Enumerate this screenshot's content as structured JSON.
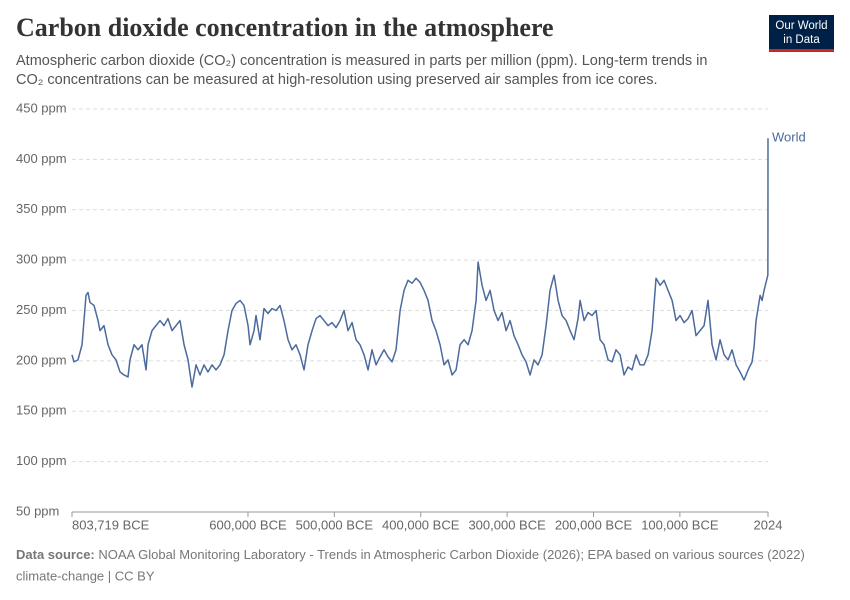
{
  "logo": [
    "Our World",
    "in Data"
  ],
  "chart_data": {
    "type": "line",
    "title": "Carbon dioxide concentration in the atmosphere",
    "subtitle": [
      "Atmospheric carbon dioxide (CO₂) concentration is measured in parts per million (ppm). Long-term trends in",
      "CO₂ concentrations can be measured at high-resolution using preserved air samples from ice cores."
    ],
    "source_label": "Data source:",
    "source": "NOAA Global Monitoring Laboratory - Trends in Atmospheric Carbon Dioxide (2026); EPA based on various sources (2022)",
    "footer": "climate-change | CC BY",
    "grid": true,
    "xlim": [
      -803719,
      2024
    ],
    "ylim": [
      50,
      450
    ],
    "xticks": [
      {
        "value": -803719,
        "label": "803,719 BCE"
      },
      {
        "value": -600000,
        "label": "600,000 BCE"
      },
      {
        "value": -500000,
        "label": "500,000 BCE"
      },
      {
        "value": -400000,
        "label": "400,000 BCE"
      },
      {
        "value": -300000,
        "label": "300,000 BCE"
      },
      {
        "value": -200000,
        "label": "200,000 BCE"
      },
      {
        "value": -100000,
        "label": "100,000 BCE"
      },
      2024
    ],
    "yticks": [
      {
        "value": 50,
        "label": "50 ppm"
      },
      {
        "value": 100,
        "label": "100 ppm"
      },
      {
        "value": 150,
        "label": "150 ppm"
      },
      {
        "value": 200,
        "label": "200 ppm"
      },
      {
        "value": 250,
        "label": "250 ppm"
      },
      {
        "value": 300,
        "label": "300 ppm"
      },
      {
        "value": 350,
        "label": "350 ppm"
      },
      {
        "value": 400,
        "label": "400 ppm"
      },
      {
        "value": 450,
        "label": "450 ppm"
      }
    ],
    "x": [
      -803719,
      -801400,
      -796800,
      -792100,
      -787500,
      -785200,
      -782900,
      -778200,
      -773600,
      -771300,
      -766700,
      -762000,
      -757400,
      -752800,
      -748100,
      -743500,
      -738900,
      -736600,
      -731900,
      -727300,
      -722700,
      -718000,
      -715700,
      -711100,
      -706500,
      -701800,
      -697200,
      -692600,
      -687900,
      -683300,
      -678700,
      -674000,
      -669400,
      -664800,
      -660100,
      -655500,
      -650900,
      -646300,
      -641600,
      -637000,
      -632400,
      -627700,
      -623100,
      -618500,
      -613800,
      -609200,
      -604600,
      -599900,
      -597600,
      -593000,
      -590700,
      -586100,
      -581400,
      -576800,
      -572200,
      -567500,
      -562900,
      -558300,
      -553600,
      -549000,
      -544400,
      -539700,
      -535100,
      -530500,
      -525800,
      -521200,
      -516600,
      -511900,
      -507300,
      -502700,
      -498100,
      -493400,
      -488800,
      -484200,
      -479500,
      -474900,
      -470300,
      -465600,
      -461000,
      -456400,
      -451700,
      -447100,
      -442500,
      -437800,
      -433200,
      -428600,
      -423900,
      -419300,
      -414700,
      -410100,
      -405400,
      -400800,
      -396200,
      -391500,
      -386900,
      -382300,
      -377600,
      -373000,
      -368400,
      -363700,
      -359100,
      -354500,
      -349800,
      -345200,
      -340600,
      -335900,
      -333600,
      -329000,
      -324400,
      -319700,
      -315100,
      -310500,
      -305900,
      -301200,
      -296600,
      -292000,
      -287300,
      -282700,
      -278100,
      -273400,
      -268800,
      -264200,
      -259500,
      -254900,
      -250300,
      -245600,
      -241000,
      -236400,
      -231700,
      -227100,
      -222500,
      -217900,
      -215500,
      -210900,
      -206300,
      -201700,
      -197000,
      -192400,
      -187800,
      -183100,
      -178500,
      -173900,
      -169200,
      -164600,
      -160000,
      -155400,
      -150700,
      -146100,
      -141500,
      -136800,
      -132200,
      -127600,
      -122900,
      -118300,
      -113700,
      -109000,
      -104400,
      -99800,
      -95100,
      -90500,
      -85900,
      -81300,
      -76600,
      -72000,
      -67400,
      -62700,
      -58100,
      -53500,
      -48800,
      -44200,
      -39600,
      -34900,
      -30300,
      -25700,
      -21000,
      -16400,
      -14100,
      -11800,
      -7100,
      -4800,
      -2500,
      -200,
      1850,
      1960,
      2024
    ],
    "series": [
      {
        "name": "World",
        "color": "#4c6a9c",
        "values": [
          206,
          199,
          201,
          216,
          265,
          268,
          258,
          255,
          240,
          230,
          235,
          216,
          206,
          201,
          189,
          186,
          184,
          201,
          216,
          211,
          216,
          191,
          216,
          230,
          235,
          240,
          235,
          242,
          230,
          235,
          240,
          216,
          201,
          174,
          196,
          186,
          196,
          189,
          196,
          191,
          196,
          206,
          230,
          250,
          257,
          260,
          255,
          235,
          216,
          230,
          245,
          221,
          252,
          247,
          252,
          250,
          255,
          240,
          221,
          211,
          216,
          206,
          191,
          216,
          230,
          242,
          245,
          240,
          235,
          238,
          233,
          240,
          250,
          230,
          238,
          221,
          216,
          206,
          191,
          211,
          196,
          204,
          211,
          204,
          199,
          211,
          250,
          270,
          280,
          277,
          282,
          278,
          270,
          260,
          240,
          230,
          216,
          196,
          201,
          186,
          191,
          216,
          221,
          216,
          230,
          260,
          298,
          275,
          260,
          270,
          250,
          240,
          248,
          230,
          240,
          225,
          216,
          206,
          199,
          186,
          201,
          196,
          206,
          235,
          270,
          285,
          260,
          245,
          240,
          230,
          221,
          242,
          260,
          240,
          248,
          245,
          250,
          221,
          216,
          201,
          199,
          211,
          206,
          186,
          194,
          191,
          206,
          196,
          196,
          206,
          230,
          282,
          275,
          280,
          270,
          260,
          240,
          245,
          238,
          242,
          250,
          225,
          230,
          235,
          260,
          216,
          201,
          221,
          206,
          201,
          211,
          196,
          189,
          181,
          191,
          199,
          214,
          240,
          265,
          260,
          270,
          278,
          285,
          317,
          421
        ]
      }
    ]
  }
}
